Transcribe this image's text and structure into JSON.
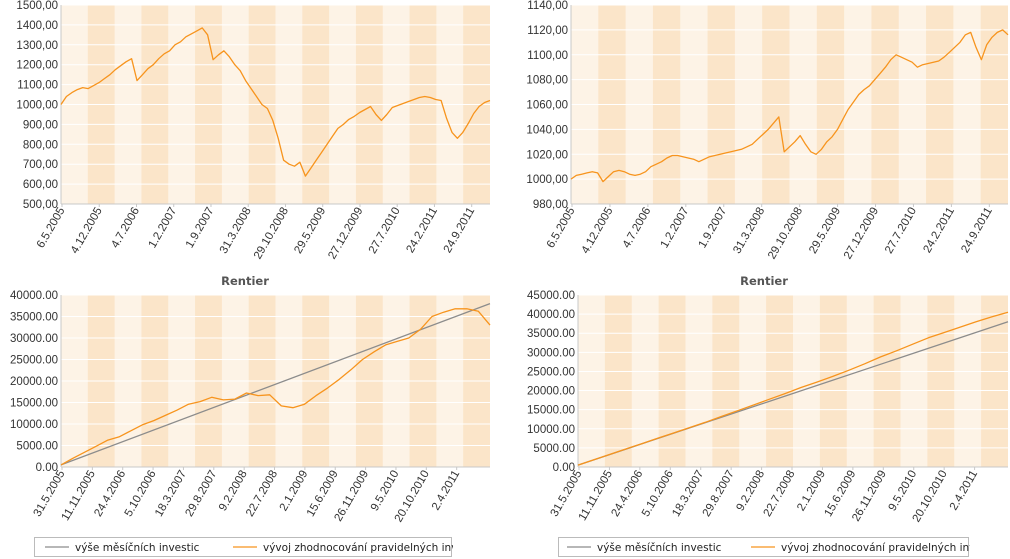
{
  "chart_data": [
    {
      "type": "line",
      "title": "",
      "xlabel": "",
      "ylabel": "",
      "ylim": [
        500,
        1500
      ],
      "y_ticks": [
        "500,00",
        "600,00",
        "700,00",
        "800,00",
        "900,00",
        "1000,00",
        "1100,00",
        "1200,00",
        "1300,00",
        "1400,00",
        "1500,00"
      ],
      "x_ticks": [
        "6.5.2005",
        "4.12.2005",
        "4.7.2006",
        "1.2.2007",
        "1.9.2007",
        "31.3.2008",
        "29.10.2008",
        "29.5.2009",
        "27.12.2009",
        "27.7.2010",
        "24.2.2011",
        "24.9.2011"
      ],
      "series": [
        {
          "color": "#f7941d",
          "values": [
            1000,
            1040,
            1060,
            1075,
            1085,
            1080,
            1095,
            1110,
            1130,
            1150,
            1175,
            1195,
            1215,
            1230,
            1120,
            1150,
            1180,
            1200,
            1230,
            1255,
            1270,
            1300,
            1315,
            1340,
            1355,
            1370,
            1385,
            1350,
            1225,
            1250,
            1270,
            1240,
            1200,
            1170,
            1120,
            1080,
            1040,
            1000,
            980,
            920,
            830,
            720,
            700,
            690,
            710,
            640,
            680,
            720,
            760,
            800,
            840,
            880,
            900,
            925,
            940,
            960,
            975,
            990,
            950,
            920,
            950,
            985,
            995,
            1005,
            1015,
            1025,
            1035,
            1040,
            1035,
            1025,
            1020,
            930,
            860,
            830,
            860,
            905,
            955,
            990,
            1010,
            1020
          ]
        }
      ]
    },
    {
      "type": "line",
      "title": "",
      "xlabel": "",
      "ylabel": "",
      "ylim": [
        980,
        1140
      ],
      "y_ticks": [
        "980,00",
        "1000,00",
        "1020,00",
        "1040,00",
        "1060,00",
        "1080,00",
        "1100,00",
        "1120,00",
        "1140,00"
      ],
      "x_ticks": [
        "6.5.2005",
        "4.12.2005",
        "4.7.2006",
        "1.2.2007",
        "1.9.2007",
        "31.3.2008",
        "29.10.2008",
        "29.5.2009",
        "27.12.2009",
        "27.7.2010",
        "24.2.2011",
        "24.9.2011"
      ],
      "series": [
        {
          "color": "#f7941d",
          "values": [
            1000,
            1003,
            1004,
            1005,
            1006,
            1005,
            998,
            1002,
            1006,
            1007,
            1006,
            1004,
            1003,
            1004,
            1006,
            1010,
            1012,
            1014,
            1017,
            1019,
            1019,
            1018,
            1017,
            1016,
            1014,
            1016,
            1018,
            1019,
            1020,
            1021,
            1022,
            1023,
            1024,
            1026,
            1028,
            1032,
            1036,
            1040,
            1045,
            1050,
            1022,
            1026,
            1030,
            1035,
            1028,
            1022,
            1020,
            1024,
            1030,
            1034,
            1040,
            1048,
            1056,
            1062,
            1068,
            1072,
            1075,
            1080,
            1085,
            1090,
            1096,
            1100,
            1098,
            1096,
            1094,
            1090,
            1092,
            1093,
            1094,
            1095,
            1098,
            1102,
            1106,
            1110,
            1116,
            1118,
            1106,
            1096,
            1108,
            1114,
            1118,
            1120,
            1116
          ]
        }
      ]
    },
    {
      "type": "line",
      "title": "Rentier",
      "xlabel": "",
      "ylabel": "",
      "ylim": [
        0,
        40000
      ],
      "y_ticks": [
        "0.00",
        "5000.00",
        "10000.00",
        "15000.00",
        "20000.00",
        "25000.00",
        "30000.00",
        "35000.00",
        "40000.00"
      ],
      "x_ticks": [
        "31.5.2005",
        "11.11.2005",
        "24.4.2006",
        "5.10.2006",
        "18.3.2007",
        "29.8.2007",
        "9.2.2008",
        "22.7.2008",
        "2.1.2009",
        "15.6.2009",
        "26.11.2009",
        "9.5.2010",
        "20.10.2010",
        "2.4.2011"
      ],
      "legend_position": "bottom",
      "series": [
        {
          "name": "výše měsíčních investic",
          "color": "#8c8c8c",
          "values": [
            500,
            38000
          ]
        },
        {
          "name": "vývoj zhodnocování pravidelných investic",
          "color": "#f7941d",
          "values": [
            500,
            2000,
            3400,
            4800,
            6200,
            7000,
            8400,
            9800,
            10800,
            12000,
            13200,
            14600,
            15200,
            16200,
            15600,
            15800,
            17200,
            16600,
            16800,
            14200,
            13800,
            14600,
            16600,
            18400,
            20400,
            22600,
            25000,
            26800,
            28400,
            29200,
            30000,
            32000,
            35000,
            36000,
            36800,
            36800,
            36200,
            33000
          ]
        }
      ]
    },
    {
      "type": "line",
      "title": "Rentier",
      "xlabel": "",
      "ylabel": "",
      "ylim": [
        0,
        45000
      ],
      "y_ticks": [
        "0.00",
        "5000.00",
        "10000.00",
        "15000.00",
        "20000.00",
        "25000.00",
        "30000.00",
        "35000.00",
        "40000.00",
        "45000.00"
      ],
      "x_ticks": [
        "31.5.2005",
        "11.11.2005",
        "24.4.2006",
        "5.10.2006",
        "18.3.2007",
        "29.8.2007",
        "9.2.2008",
        "22.7.2008",
        "2.1.2009",
        "15.6.2009",
        "26.11.2009",
        "9.5.2010",
        "20.10.2010",
        "2.4.2011"
      ],
      "legend_position": "bottom",
      "series": [
        {
          "name": "výše měsíčních investic",
          "color": "#8c8c8c",
          "values": [
            500,
            38000
          ]
        },
        {
          "name": "vývoj zhodnocování pravidelných investic",
          "color": "#f7941d",
          "values": [
            500,
            1900,
            3300,
            4700,
            6100,
            7500,
            8900,
            10300,
            11700,
            13200,
            14700,
            16200,
            17700,
            19200,
            20800,
            22200,
            23700,
            25300,
            27000,
            28800,
            30400,
            32100,
            33800,
            35200,
            36600,
            38000,
            39300,
            40500
          ]
        }
      ]
    }
  ]
}
